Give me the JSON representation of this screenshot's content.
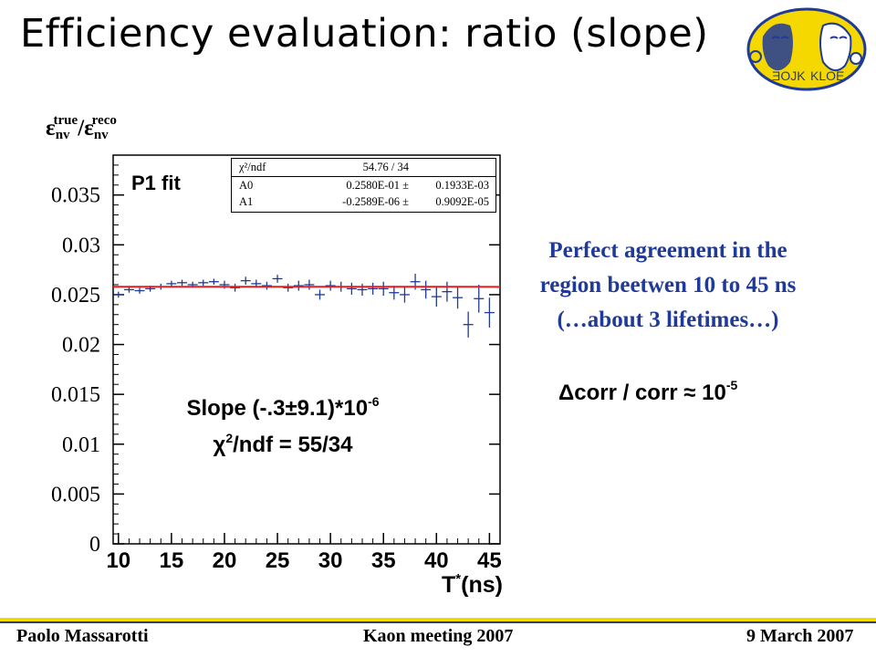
{
  "slide": {
    "title": "Efficiency evaluation: ratio (slope)",
    "fit_label": "P1 fit",
    "slope_line1_pre": "Slope (-.3±9.1)*10",
    "slope_line1_sup": "-6",
    "slope_line2_chi": "χ",
    "slope_line2_sup": "2",
    "slope_line2_rest": "/ndf = 55/34",
    "right_text": [
      "Perfect agreement in the",
      "region beetwen 10 to 45 ns",
      "(…about 3 lifetimes…)"
    ],
    "corr_pre": "Δcorr / corr ≈ 10",
    "corr_sup": "-5",
    "footer_left": "Paolo Massarotti",
    "footer_center": "Kaon  meeting  2007",
    "footer_right": "9 March 2007"
  },
  "ylabel": {
    "eps1": "ε",
    "sub1": "nv",
    "sup1": "true",
    "slash": "/",
    "eps2": "ε",
    "sub2": "nv",
    "sup2": "reco"
  },
  "xlabel": {
    "main": "T",
    "sup": "*",
    "unit": "(ns)"
  },
  "stat_box": {
    "rows": [
      {
        "name": "χ²/ndf",
        "value": "54.76   /   34",
        "error": ""
      },
      {
        "name": "A0",
        "value": "0.2580E-01 ±",
        "error": "0.1933E-03"
      },
      {
        "name": "A1",
        "value": "-0.2589E-06 ±",
        "error": "0.9092E-05"
      }
    ]
  },
  "colors": {
    "fit_line": "#e02020",
    "data": "#1f3a99",
    "right_text": "#1f3a99",
    "footer_yellow": "#f5d800",
    "footer_blue": "#1f3a99"
  },
  "logo": {
    "text_left": "ƎOJK",
    "text_right": "KLOE",
    "icon": "kloe-logo-icon"
  },
  "chart_data": {
    "type": "scatter",
    "title": "",
    "xlabel": "T*(ns)",
    "ylabel": "εnv true/εnv reco",
    "xlim": [
      9.5,
      46
    ],
    "ylim": [
      0,
      0.039
    ],
    "xticks": [
      10,
      15,
      20,
      25,
      30,
      35,
      40,
      45
    ],
    "yticks": [
      0,
      0.005,
      0.01,
      0.015,
      0.02,
      0.025,
      0.03,
      0.035
    ],
    "xtick_labels": [
      "10",
      "15",
      "20",
      "25",
      "30",
      "35",
      "40",
      "45"
    ],
    "ytick_labels": [
      "0",
      "0.005",
      "0.01",
      "0.015",
      "0.02",
      "0.025",
      "0.03",
      "0.035"
    ],
    "grid": false,
    "fit": {
      "name": "P1 fit",
      "A0": 0.0258,
      "A1": -2.589e-07
    },
    "series": [
      {
        "points": [
          {
            "x": 10.0,
            "y": 0.025,
            "ey": 0.0003
          },
          {
            "x": 11.0,
            "y": 0.0255,
            "ey": 0.0003
          },
          {
            "x": 12.0,
            "y": 0.0254,
            "ey": 0.0003
          },
          {
            "x": 13.0,
            "y": 0.0256,
            "ey": 0.0003
          },
          {
            "x": 14.0,
            "y": 0.0258,
            "ey": 0.0003
          },
          {
            "x": 15.0,
            "y": 0.0261,
            "ey": 0.0003
          },
          {
            "x": 16.0,
            "y": 0.0262,
            "ey": 0.0003
          },
          {
            "x": 17.0,
            "y": 0.026,
            "ey": 0.0003
          },
          {
            "x": 18.0,
            "y": 0.0262,
            "ey": 0.0003
          },
          {
            "x": 19.0,
            "y": 0.0263,
            "ey": 0.0003
          },
          {
            "x": 20.0,
            "y": 0.026,
            "ey": 0.0004
          },
          {
            "x": 21.0,
            "y": 0.0257,
            "ey": 0.0004
          },
          {
            "x": 22.0,
            "y": 0.0264,
            "ey": 0.0004
          },
          {
            "x": 23.0,
            "y": 0.0261,
            "ey": 0.0004
          },
          {
            "x": 24.0,
            "y": 0.0259,
            "ey": 0.0004
          },
          {
            "x": 25.0,
            "y": 0.0266,
            "ey": 0.0004
          },
          {
            "x": 26.0,
            "y": 0.0257,
            "ey": 0.0004
          },
          {
            "x": 27.0,
            "y": 0.0259,
            "ey": 0.0005
          },
          {
            "x": 28.0,
            "y": 0.026,
            "ey": 0.0005
          },
          {
            "x": 29.0,
            "y": 0.025,
            "ey": 0.0005
          },
          {
            "x": 30.0,
            "y": 0.0259,
            "ey": 0.0005
          },
          {
            "x": 31.0,
            "y": 0.0258,
            "ey": 0.0005
          },
          {
            "x": 32.0,
            "y": 0.0256,
            "ey": 0.0006
          },
          {
            "x": 33.0,
            "y": 0.0255,
            "ey": 0.0006
          },
          {
            "x": 34.0,
            "y": 0.0256,
            "ey": 0.0006
          },
          {
            "x": 35.0,
            "y": 0.0256,
            "ey": 0.0007
          },
          {
            "x": 36.0,
            "y": 0.0252,
            "ey": 0.0007
          },
          {
            "x": 37.0,
            "y": 0.025,
            "ey": 0.0008
          },
          {
            "x": 38.0,
            "y": 0.0263,
            "ey": 0.0008
          },
          {
            "x": 39.0,
            "y": 0.0255,
            "ey": 0.0009
          },
          {
            "x": 40.0,
            "y": 0.0248,
            "ey": 0.001
          },
          {
            "x": 41.0,
            "y": 0.0253,
            "ey": 0.001
          },
          {
            "x": 42.0,
            "y": 0.0247,
            "ey": 0.0011
          },
          {
            "x": 43.0,
            "y": 0.022,
            "ey": 0.0013
          },
          {
            "x": 44.0,
            "y": 0.0246,
            "ey": 0.0014
          },
          {
            "x": 45.0,
            "y": 0.0232,
            "ey": 0.0015
          }
        ]
      }
    ]
  }
}
